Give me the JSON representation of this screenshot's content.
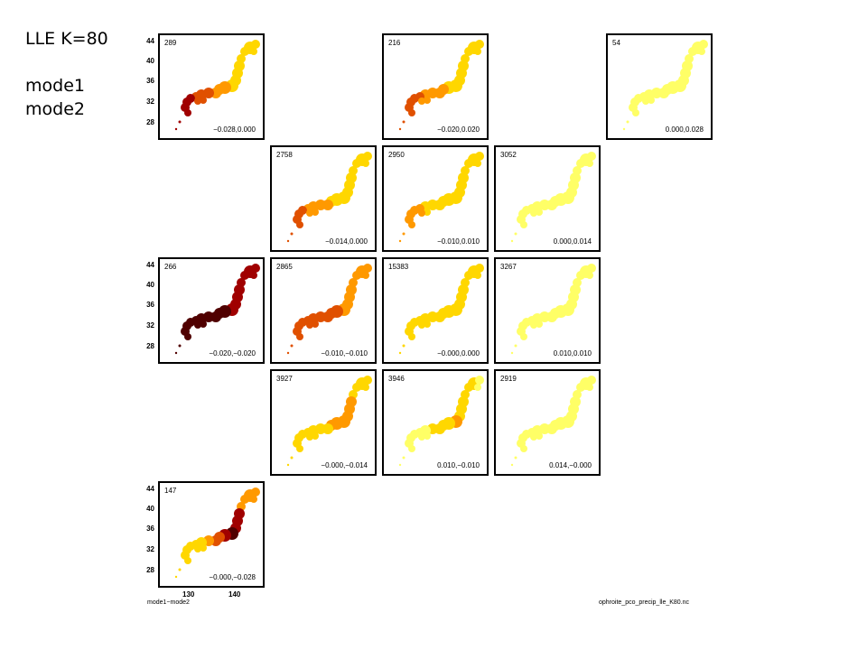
{
  "header": {
    "title": "LLE K=80",
    "line1": "mode1",
    "line2": "mode2"
  },
  "footer": {
    "axis_caption": "mode1−mode2",
    "filename": "ophroite_pco_precip_lle_K80.nc"
  },
  "chart_data": {
    "type": "heatmap",
    "layout": "5x5 grid of Japan precipitation maps",
    "y_ticks": [
      "44",
      "40",
      "36",
      "32",
      "28"
    ],
    "x_ticks": [
      "130",
      "140"
    ],
    "panels": [
      {
        "row": 0,
        "col": 0,
        "count": "289",
        "label": "−0.028,0.000",
        "intensity": 0.75,
        "focus": "southwest"
      },
      {
        "row": 0,
        "col": 2,
        "count": "216",
        "label": "−0.020,0.020",
        "intensity": 0.6,
        "focus": "southwest"
      },
      {
        "row": 0,
        "col": 4,
        "count": "54",
        "label": "0.000,0.028",
        "intensity": 0.08,
        "focus": "none"
      },
      {
        "row": 1,
        "col": 1,
        "count": "2758",
        "label": "−0.014,0.000",
        "intensity": 0.55,
        "focus": "southwest"
      },
      {
        "row": 1,
        "col": 2,
        "count": "2950",
        "label": "−0.010,0.010",
        "intensity": 0.4,
        "focus": "southwest"
      },
      {
        "row": 1,
        "col": 3,
        "count": "3052",
        "label": "0.000,0.014",
        "intensity": 0.12,
        "focus": "none"
      },
      {
        "row": 2,
        "col": 0,
        "count": "266",
        "label": "−0.020,−0.020",
        "intensity": 0.95,
        "focus": "all"
      },
      {
        "row": 2,
        "col": 1,
        "count": "2865",
        "label": "−0.010,−0.010",
        "intensity": 0.55,
        "focus": "all"
      },
      {
        "row": 2,
        "col": 2,
        "count": "15383",
        "label": "−0.000,0.000",
        "intensity": 0.28,
        "focus": "none"
      },
      {
        "row": 2,
        "col": 3,
        "count": "3267",
        "label": "0.010,0.010",
        "intensity": 0.06,
        "focus": "none"
      },
      {
        "row": 3,
        "col": 1,
        "count": "3927",
        "label": "−0.000,−0.014",
        "intensity": 0.45,
        "focus": "central"
      },
      {
        "row": 3,
        "col": 2,
        "count": "3946",
        "label": "0.010,−0.010",
        "intensity": 0.3,
        "focus": "central"
      },
      {
        "row": 3,
        "col": 3,
        "count": "2919",
        "label": "0.014,−0.000",
        "intensity": 0.1,
        "focus": "none"
      },
      {
        "row": 4,
        "col": 0,
        "count": "147",
        "label": "−0.000,−0.028",
        "intensity": 0.8,
        "focus": "central"
      }
    ],
    "colormap": [
      "#ffffe0",
      "#ffff66",
      "#ffd700",
      "#ff9900",
      "#e05000",
      "#a00000",
      "#500000"
    ]
  }
}
